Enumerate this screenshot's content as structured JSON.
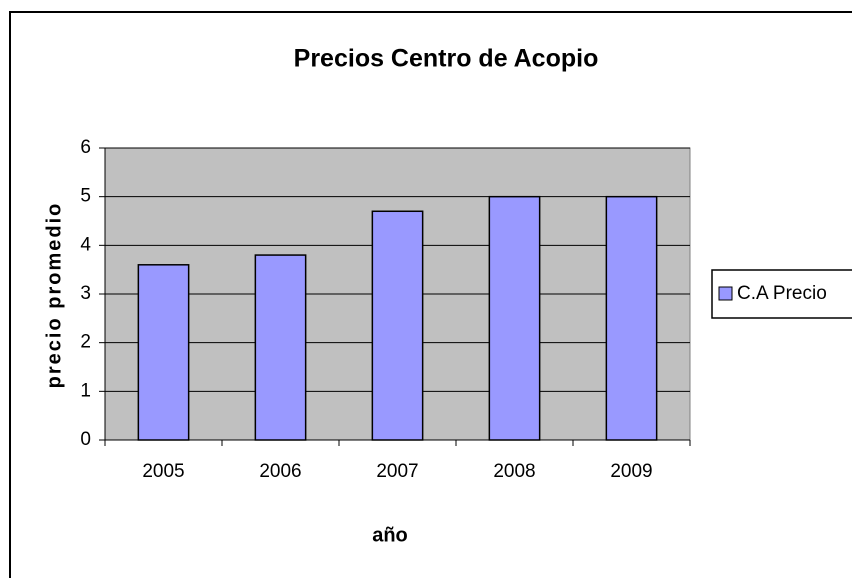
{
  "chart_data": {
    "type": "bar",
    "title": "Precios Centro de Acopio",
    "x_label": "año",
    "y_label": "precio promedio",
    "categories": [
      "2005",
      "2006",
      "2007",
      "2008",
      "2009"
    ],
    "series": [
      {
        "name": "C.A Precio",
        "color": "#9999ff",
        "values": [
          3.6,
          3.8,
          4.7,
          5.0,
          5.0
        ]
      }
    ],
    "ylim": [
      0,
      6
    ],
    "yticks": [
      0,
      1,
      2,
      3,
      4,
      5,
      6
    ],
    "grid": true,
    "legend": "right"
  }
}
